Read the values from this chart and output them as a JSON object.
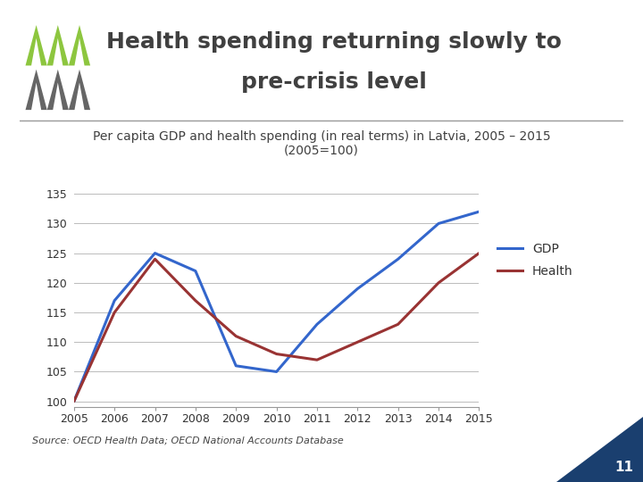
{
  "title_line1": "Health spending returning slowly to",
  "title_line2": "pre-crisis level",
  "subtitle": "Per capita GDP and health spending (in real terms) in Latvia, 2005 – 2015\n(2005=100)",
  "source": "Source: OECD Health Data; OECD National Accounts Database",
  "years": [
    2005,
    2006,
    2007,
    2008,
    2009,
    2010,
    2011,
    2012,
    2013,
    2014,
    2015
  ],
  "gdp": [
    100,
    117,
    125,
    122,
    106,
    105,
    113,
    119,
    124,
    130,
    132
  ],
  "health": [
    100,
    115,
    124,
    117,
    111,
    108,
    107,
    110,
    113,
    120,
    125
  ],
  "gdp_color": "#3366CC",
  "health_color": "#993333",
  "background_color": "#FFFFFF",
  "plot_bg_color": "#FFFFFF",
  "grid_color": "#BBBBBB",
  "ylim": [
    99,
    136
  ],
  "yticks": [
    100,
    105,
    110,
    115,
    120,
    125,
    130,
    135
  ],
  "title_fontsize": 18,
  "subtitle_fontsize": 10,
  "source_fontsize": 8,
  "legend_fontsize": 10,
  "tick_fontsize": 9,
  "page_number": "11",
  "line_width": 2.2,
  "logo_green": "#8DC63F",
  "logo_gray": "#666666",
  "title_color": "#404040",
  "triangle_color": "#1A3F6F"
}
